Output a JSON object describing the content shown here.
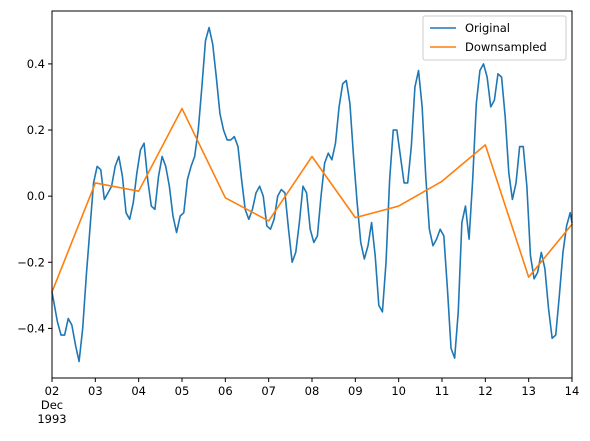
{
  "chart_data": {
    "type": "line",
    "title": "",
    "xlabel": "",
    "ylabel": "",
    "x_axis_type": "date",
    "xlim": [
      "1993-12-02",
      "1993-12-14"
    ],
    "ylim": [
      -0.55,
      0.56
    ],
    "grid": false,
    "legend_placement": "top-right",
    "x_ticks": [
      {
        "day": "02",
        "sub": [
          "Dec",
          "1993"
        ]
      },
      {
        "day": "03",
        "sub": []
      },
      {
        "day": "04",
        "sub": []
      },
      {
        "day": "05",
        "sub": []
      },
      {
        "day": "06",
        "sub": []
      },
      {
        "day": "07",
        "sub": []
      },
      {
        "day": "08",
        "sub": []
      },
      {
        "day": "09",
        "sub": []
      },
      {
        "day": "10",
        "sub": []
      },
      {
        "day": "11",
        "sub": []
      },
      {
        "day": "12",
        "sub": []
      },
      {
        "day": "13",
        "sub": []
      },
      {
        "day": "14",
        "sub": []
      }
    ],
    "y_ticks": [
      -0.4,
      -0.2,
      0.0,
      0.2,
      0.4
    ],
    "y_tick_labels": [
      "−0.4",
      "−0.2",
      "0.0",
      "0.2",
      "0.4"
    ],
    "series": [
      {
        "name": "Original",
        "color": "#1f77b4",
        "points": [
          [
            "1993-12-02 00:00",
            -0.29
          ],
          [
            "1993-12-02 03:00",
            -0.38
          ],
          [
            "1993-12-02 05:00",
            -0.42
          ],
          [
            "1993-12-02 07:00",
            -0.42
          ],
          [
            "1993-12-02 09:00",
            -0.37
          ],
          [
            "1993-12-02 11:00",
            -0.39
          ],
          [
            "1993-12-02 13:00",
            -0.45
          ],
          [
            "1993-12-02 15:00",
            -0.5
          ],
          [
            "1993-12-02 17:00",
            -0.4
          ],
          [
            "1993-12-02 19:00",
            -0.24
          ],
          [
            "1993-12-02 21:00",
            -0.1
          ],
          [
            "1993-12-02 23:00",
            0.04
          ],
          [
            "1993-12-03 01:00",
            0.09
          ],
          [
            "1993-12-03 03:00",
            0.08
          ],
          [
            "1993-12-03 05:00",
            -0.01
          ],
          [
            "1993-12-03 07:00",
            0.01
          ],
          [
            "1993-12-03 09:00",
            0.03
          ],
          [
            "1993-12-03 11:00",
            0.09
          ],
          [
            "1993-12-03 13:00",
            0.12
          ],
          [
            "1993-12-03 15:00",
            0.06
          ],
          [
            "1993-12-03 17:00",
            -0.05
          ],
          [
            "1993-12-03 19:00",
            -0.07
          ],
          [
            "1993-12-03 21:00",
            -0.02
          ],
          [
            "1993-12-03 23:00",
            0.07
          ],
          [
            "1993-12-04 01:00",
            0.14
          ],
          [
            "1993-12-04 03:00",
            0.16
          ],
          [
            "1993-12-04 05:00",
            0.05
          ],
          [
            "1993-12-04 07:00",
            -0.03
          ],
          [
            "1993-12-04 09:00",
            -0.04
          ],
          [
            "1993-12-04 11:00",
            0.06
          ],
          [
            "1993-12-04 13:00",
            0.12
          ],
          [
            "1993-12-04 15:00",
            0.09
          ],
          [
            "1993-12-04 17:00",
            0.03
          ],
          [
            "1993-12-04 19:00",
            -0.06
          ],
          [
            "1993-12-04 21:00",
            -0.11
          ],
          [
            "1993-12-04 23:00",
            -0.06
          ],
          [
            "1993-12-05 01:00",
            -0.05
          ],
          [
            "1993-12-05 03:00",
            0.05
          ],
          [
            "1993-12-05 05:00",
            0.09
          ],
          [
            "1993-12-05 07:00",
            0.12
          ],
          [
            "1993-12-05 09:00",
            0.2
          ],
          [
            "1993-12-05 11:00",
            0.33
          ],
          [
            "1993-12-05 13:00",
            0.47
          ],
          [
            "1993-12-05 15:00",
            0.51
          ],
          [
            "1993-12-05 17:00",
            0.46
          ],
          [
            "1993-12-05 19:00",
            0.36
          ],
          [
            "1993-12-05 21:00",
            0.25
          ],
          [
            "1993-12-05 23:00",
            0.2
          ],
          [
            "1993-12-06 01:00",
            0.17
          ],
          [
            "1993-12-06 03:00",
            0.17
          ],
          [
            "1993-12-06 05:00",
            0.18
          ],
          [
            "1993-12-06 07:00",
            0.15
          ],
          [
            "1993-12-06 09:00",
            0.05
          ],
          [
            "1993-12-06 11:00",
            -0.04
          ],
          [
            "1993-12-06 13:00",
            -0.07
          ],
          [
            "1993-12-06 15:00",
            -0.04
          ],
          [
            "1993-12-06 17:00",
            0.01
          ],
          [
            "1993-12-06 19:00",
            0.03
          ],
          [
            "1993-12-06 21:00",
            0.0
          ],
          [
            "1993-12-06 23:00",
            -0.09
          ],
          [
            "1993-12-07 01:00",
            -0.1
          ],
          [
            "1993-12-07 03:00",
            -0.07
          ],
          [
            "1993-12-07 05:00",
            0.0
          ],
          [
            "1993-12-07 07:00",
            0.02
          ],
          [
            "1993-12-07 09:00",
            0.01
          ],
          [
            "1993-12-07 11:00",
            -0.1
          ],
          [
            "1993-12-07 13:00",
            -0.2
          ],
          [
            "1993-12-07 15:00",
            -0.17
          ],
          [
            "1993-12-07 17:00",
            -0.08
          ],
          [
            "1993-12-07 19:00",
            0.03
          ],
          [
            "1993-12-07 21:00",
            0.01
          ],
          [
            "1993-12-07 23:00",
            -0.1
          ],
          [
            "1993-12-08 01:00",
            -0.14
          ],
          [
            "1993-12-08 03:00",
            -0.12
          ],
          [
            "1993-12-08 05:00",
            0.0
          ],
          [
            "1993-12-08 07:00",
            0.1
          ],
          [
            "1993-12-08 09:00",
            0.13
          ],
          [
            "1993-12-08 11:00",
            0.11
          ],
          [
            "1993-12-08 13:00",
            0.16
          ],
          [
            "1993-12-08 15:00",
            0.27
          ],
          [
            "1993-12-08 17:00",
            0.34
          ],
          [
            "1993-12-08 19:00",
            0.35
          ],
          [
            "1993-12-08 21:00",
            0.28
          ],
          [
            "1993-12-08 23:00",
            0.12
          ],
          [
            "1993-12-09 01:00",
            -0.02
          ],
          [
            "1993-12-09 03:00",
            -0.14
          ],
          [
            "1993-12-09 05:00",
            -0.19
          ],
          [
            "1993-12-09 07:00",
            -0.15
          ],
          [
            "1993-12-09 09:00",
            -0.08
          ],
          [
            "1993-12-09 11:00",
            -0.18
          ],
          [
            "1993-12-09 13:00",
            -0.33
          ],
          [
            "1993-12-09 15:00",
            -0.35
          ],
          [
            "1993-12-09 17:00",
            -0.2
          ],
          [
            "1993-12-09 19:00",
            0.05
          ],
          [
            "1993-12-09 21:00",
            0.2
          ],
          [
            "1993-12-09 23:00",
            0.2
          ],
          [
            "1993-12-10 01:00",
            0.12
          ],
          [
            "1993-12-10 03:00",
            0.04
          ],
          [
            "1993-12-10 05:00",
            0.04
          ],
          [
            "1993-12-10 07:00",
            0.15
          ],
          [
            "1993-12-10 09:00",
            0.33
          ],
          [
            "1993-12-10 11:00",
            0.38
          ],
          [
            "1993-12-10 13:00",
            0.27
          ],
          [
            "1993-12-10 15:00",
            0.06
          ],
          [
            "1993-12-10 17:00",
            -0.1
          ],
          [
            "1993-12-10 19:00",
            -0.15
          ],
          [
            "1993-12-10 21:00",
            -0.13
          ],
          [
            "1993-12-10 23:00",
            -0.1
          ],
          [
            "1993-12-11 01:00",
            -0.12
          ],
          [
            "1993-12-11 03:00",
            -0.28
          ],
          [
            "1993-12-11 05:00",
            -0.46
          ],
          [
            "1993-12-11 07:00",
            -0.49
          ],
          [
            "1993-12-11 09:00",
            -0.35
          ],
          [
            "1993-12-11 11:00",
            -0.08
          ],
          [
            "1993-12-11 13:00",
            -0.03
          ],
          [
            "1993-12-11 15:00",
            -0.13
          ],
          [
            "1993-12-11 17:00",
            0.05
          ],
          [
            "1993-12-11 19:00",
            0.28
          ],
          [
            "1993-12-11 21:00",
            0.38
          ],
          [
            "1993-12-11 23:00",
            0.4
          ],
          [
            "1993-12-12 01:00",
            0.36
          ],
          [
            "1993-12-12 03:00",
            0.27
          ],
          [
            "1993-12-12 05:00",
            0.29
          ],
          [
            "1993-12-12 07:00",
            0.37
          ],
          [
            "1993-12-12 09:00",
            0.36
          ],
          [
            "1993-12-12 11:00",
            0.24
          ],
          [
            "1993-12-12 13:00",
            0.07
          ],
          [
            "1993-12-12 15:00",
            -0.01
          ],
          [
            "1993-12-12 17:00",
            0.04
          ],
          [
            "1993-12-12 19:00",
            0.15
          ],
          [
            "1993-12-12 21:00",
            0.15
          ],
          [
            "1993-12-12 23:00",
            0.03
          ],
          [
            "1993-12-13 01:00",
            -0.18
          ],
          [
            "1993-12-13 03:00",
            -0.25
          ],
          [
            "1993-12-13 05:00",
            -0.23
          ],
          [
            "1993-12-13 07:00",
            -0.17
          ],
          [
            "1993-12-13 09:00",
            -0.22
          ],
          [
            "1993-12-13 11:00",
            -0.34
          ],
          [
            "1993-12-13 13:00",
            -0.43
          ],
          [
            "1993-12-13 15:00",
            -0.42
          ],
          [
            "1993-12-13 17:00",
            -0.3
          ],
          [
            "1993-12-13 19:00",
            -0.17
          ],
          [
            "1993-12-13 21:00",
            -0.09
          ],
          [
            "1993-12-13 23:00",
            -0.05
          ],
          [
            "1993-12-14 00:00",
            -0.08
          ]
        ]
      },
      {
        "name": "Downsampled",
        "color": "#ff7f0e",
        "points": [
          [
            "1993-12-02 00:00",
            -0.29
          ],
          [
            "1993-12-03 00:00",
            0.04
          ],
          [
            "1993-12-04 00:00",
            0.015
          ],
          [
            "1993-12-05 00:00",
            0.265
          ],
          [
            "1993-12-06 00:00",
            -0.005
          ],
          [
            "1993-12-07 00:00",
            -0.075
          ],
          [
            "1993-12-08 00:00",
            0.12
          ],
          [
            "1993-12-09 00:00",
            -0.065
          ],
          [
            "1993-12-10 00:00",
            -0.03
          ],
          [
            "1993-12-11 00:00",
            0.045
          ],
          [
            "1993-12-12 00:00",
            0.155
          ],
          [
            "1993-12-13 00:00",
            -0.245
          ],
          [
            "1993-12-14 00:00",
            -0.085
          ]
        ]
      }
    ]
  }
}
